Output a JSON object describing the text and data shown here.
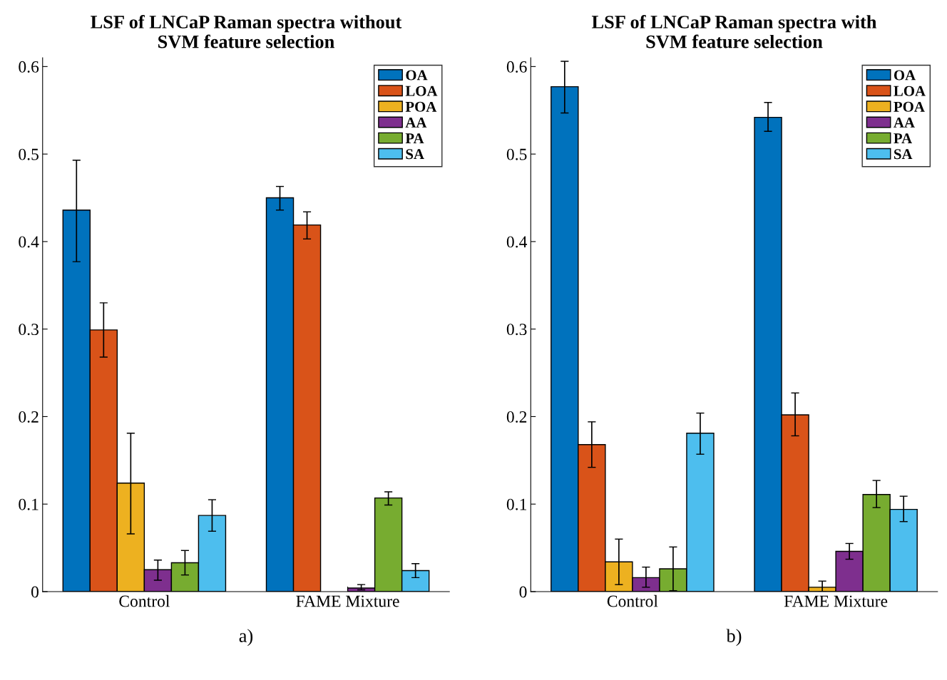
{
  "chart_data": [
    {
      "type": "bar",
      "title": "LSF of LNCaP Raman spectra without\nSVM feature selection",
      "categories": [
        "Control",
        "FAME Mixture"
      ],
      "ylim": [
        0,
        0.61
      ],
      "yticks": [
        0,
        0.1,
        0.2,
        0.3,
        0.4,
        0.5,
        0.6
      ],
      "legend": "top right",
      "grid": false,
      "annotations": [
        "a)"
      ],
      "series": [
        {
          "name": "OA",
          "color": "#0072bd",
          "values": [
            0.436,
            0.45
          ],
          "errors": [
            [
              0.377,
              0.493
            ],
            [
              0.436,
              0.463
            ]
          ]
        },
        {
          "name": "LOA",
          "color": "#d95319",
          "values": [
            0.299,
            0.419
          ],
          "errors": [
            [
              0.268,
              0.33
            ],
            [
              0.403,
              0.434
            ]
          ]
        },
        {
          "name": "POA",
          "color": "#edb120",
          "values": [
            0.124,
            null
          ],
          "errors": [
            [
              0.066,
              0.181
            ],
            null
          ]
        },
        {
          "name": "AA",
          "color": "#7e2f8e",
          "values": [
            0.025,
            0.004
          ],
          "errors": [
            [
              0.013,
              0.036
            ],
            [
              0.002,
              0.008
            ]
          ]
        },
        {
          "name": "PA",
          "color": "#77ac30",
          "values": [
            0.033,
            0.107
          ],
          "errors": [
            [
              0.019,
              0.047
            ],
            [
              0.099,
              0.114
            ]
          ]
        },
        {
          "name": "SA",
          "color": "#4dbeee",
          "values": [
            0.087,
            0.024
          ],
          "errors": [
            [
              0.069,
              0.105
            ],
            [
              0.016,
              0.032
            ]
          ]
        }
      ]
    },
    {
      "type": "bar",
      "title": "LSF of LNCaP Raman spectra with\nSVM feature selection",
      "categories": [
        "Control",
        "FAME Mixture"
      ],
      "ylim": [
        0,
        0.61
      ],
      "yticks": [
        0,
        0.1,
        0.2,
        0.3,
        0.4,
        0.5,
        0.6
      ],
      "legend": "top right",
      "grid": false,
      "annotations": [
        "b)"
      ],
      "series": [
        {
          "name": "OA",
          "color": "#0072bd",
          "values": [
            0.577,
            0.542
          ],
          "errors": [
            [
              0.547,
              0.606
            ],
            [
              0.526,
              0.559
            ]
          ]
        },
        {
          "name": "LOA",
          "color": "#d95319",
          "values": [
            0.168,
            0.202
          ],
          "errors": [
            [
              0.142,
              0.194
            ],
            [
              0.178,
              0.227
            ]
          ]
        },
        {
          "name": "POA",
          "color": "#edb120",
          "values": [
            0.034,
            0.005
          ],
          "errors": [
            [
              0.008,
              0.06
            ],
            [
              0.0,
              0.012
            ]
          ]
        },
        {
          "name": "AA",
          "color": "#7e2f8e",
          "values": [
            0.016,
            0.046
          ],
          "errors": [
            [
              0.005,
              0.028
            ],
            [
              0.037,
              0.055
            ]
          ]
        },
        {
          "name": "PA",
          "color": "#77ac30",
          "values": [
            0.026,
            0.111
          ],
          "errors": [
            [
              0.001,
              0.051
            ],
            [
              0.096,
              0.127
            ]
          ]
        },
        {
          "name": "SA",
          "color": "#4dbeee",
          "values": [
            0.181,
            0.094
          ],
          "errors": [
            [
              0.157,
              0.204
            ],
            [
              0.08,
              0.109
            ]
          ]
        }
      ]
    }
  ]
}
